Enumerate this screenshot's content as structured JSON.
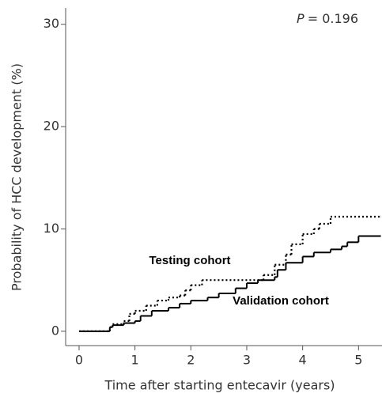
{
  "chart_data": {
    "type": "line",
    "step": "post",
    "xlabel": "Time after starting entecavir (years)",
    "ylabel": "Probability of HCC development (%)",
    "p_label": "P",
    "p_value_text": "= 0.196",
    "xlim": [
      -0.24,
      5.42
    ],
    "xticks": [
      0,
      1,
      2,
      3,
      4,
      5
    ],
    "ylim": [
      -1.4,
      31.6
    ],
    "yticks": [
      0,
      10,
      20,
      30
    ],
    "grid": false,
    "series": [
      {
        "name": "Testing cohort",
        "color": "#000000",
        "dash": "dotted",
        "x": [
          0,
          0.55,
          0.6,
          0.8,
          0.9,
          1.0,
          1.2,
          1.4,
          1.6,
          1.8,
          1.9,
          2.0,
          2.2,
          3.3,
          3.5,
          3.7,
          3.8,
          4.0,
          4.2,
          4.3,
          4.5,
          5.4
        ],
        "values": [
          0,
          0.4,
          0.7,
          1,
          1.7,
          2,
          2.5,
          3,
          3.3,
          3.5,
          4,
          4.5,
          5,
          5.5,
          6.5,
          7.5,
          8.5,
          9.5,
          10,
          10.5,
          11.2,
          11.2
        ]
      },
      {
        "name": "Validation cohort",
        "color": "#000000",
        "dash": "solid",
        "x": [
          0,
          0.55,
          0.6,
          0.8,
          1.0,
          1.1,
          1.3,
          1.6,
          1.8,
          2.0,
          2.3,
          2.5,
          2.8,
          3.0,
          3.2,
          3.5,
          3.55,
          3.7,
          4.0,
          4.2,
          4.5,
          4.7,
          4.8,
          5.0,
          5.4
        ],
        "values": [
          0,
          0.4,
          0.6,
          0.8,
          1,
          1.5,
          2,
          2.3,
          2.7,
          3,
          3.3,
          3.7,
          4.2,
          4.7,
          5,
          5.3,
          6,
          6.7,
          7.3,
          7.7,
          8,
          8.3,
          8.7,
          9.3,
          9.3
        ]
      }
    ]
  }
}
